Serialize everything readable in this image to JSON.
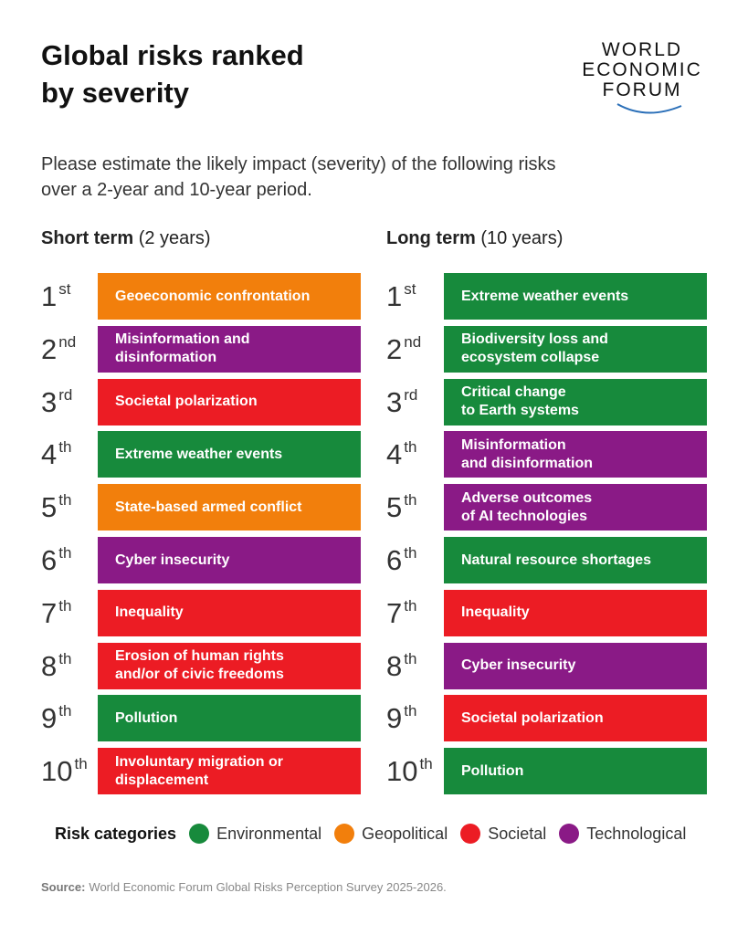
{
  "header": {
    "title": "Global risks ranked by severity",
    "logo": [
      "WORLD",
      "ECONOMIC",
      "FORUM"
    ]
  },
  "subtitle": "Please estimate the likely impact (severity) of the following risks over a 2-year and 10-year period.",
  "columns": [
    {
      "heading": "Short term",
      "period": "(2 years)",
      "items": [
        {
          "rank": 1,
          "suffix": "st",
          "label": [
            "Geoeconomic confrontation"
          ],
          "category": "Geopolitical"
        },
        {
          "rank": 2,
          "suffix": "nd",
          "label": [
            "Misinformation and",
            "disinformation"
          ],
          "category": "Technological"
        },
        {
          "rank": 3,
          "suffix": "rd",
          "label": [
            "Societal polarization"
          ],
          "category": "Societal"
        },
        {
          "rank": 4,
          "suffix": "th",
          "label": [
            "Extreme weather events"
          ],
          "category": "Environmental"
        },
        {
          "rank": 5,
          "suffix": "th",
          "label": [
            "State-based armed conflict"
          ],
          "category": "Geopolitical"
        },
        {
          "rank": 6,
          "suffix": "th",
          "label": [
            "Cyber insecurity"
          ],
          "category": "Technological"
        },
        {
          "rank": 7,
          "suffix": "th",
          "label": [
            "Inequality"
          ],
          "category": "Societal"
        },
        {
          "rank": 8,
          "suffix": "th",
          "label": [
            "Erosion of human rights",
            "and/or of civic freedoms"
          ],
          "category": "Societal"
        },
        {
          "rank": 9,
          "suffix": "th",
          "label": [
            "Pollution"
          ],
          "category": "Environmental"
        },
        {
          "rank": 10,
          "suffix": "th",
          "label": [
            "Involuntary migration or",
            "displacement"
          ],
          "category": "Societal"
        }
      ]
    },
    {
      "heading": "Long term",
      "period": "(10 years)",
      "items": [
        {
          "rank": 1,
          "suffix": "st",
          "label": [
            "Extreme weather events"
          ],
          "category": "Environmental"
        },
        {
          "rank": 2,
          "suffix": "nd",
          "label": [
            "Biodiversity loss and",
            "ecosystem collapse"
          ],
          "category": "Environmental"
        },
        {
          "rank": 3,
          "suffix": "rd",
          "label": [
            "Critical change",
            "to Earth systems"
          ],
          "category": "Environmental"
        },
        {
          "rank": 4,
          "suffix": "th",
          "label": [
            "Misinformation",
            "and disinformation"
          ],
          "category": "Technological"
        },
        {
          "rank": 5,
          "suffix": "th",
          "label": [
            "Adverse outcomes",
            "of AI technologies"
          ],
          "category": "Technological"
        },
        {
          "rank": 6,
          "suffix": "th",
          "label": [
            "Natural resource shortages"
          ],
          "category": "Environmental"
        },
        {
          "rank": 7,
          "suffix": "th",
          "label": [
            "Inequality"
          ],
          "category": "Societal"
        },
        {
          "rank": 8,
          "suffix": "th",
          "label": [
            "Cyber insecurity"
          ],
          "category": "Technological"
        },
        {
          "rank": 9,
          "suffix": "th",
          "label": [
            "Societal polarization"
          ],
          "category": "Societal"
        },
        {
          "rank": 10,
          "suffix": "th",
          "label": [
            "Pollution"
          ],
          "category": "Environmental"
        }
      ]
    }
  ],
  "legend": {
    "title": "Risk categories",
    "items": [
      {
        "name": "Environmental",
        "color": "#178a3c"
      },
      {
        "name": "Geopolitical",
        "color": "#f27f0c"
      },
      {
        "name": "Societal",
        "color": "#ec1c24"
      },
      {
        "name": "Technological",
        "color": "#8a1a86"
      }
    ]
  },
  "source": {
    "label": "Source:",
    "text": "World Economic Forum Global Risks Perception Survey 2025-2026."
  }
}
